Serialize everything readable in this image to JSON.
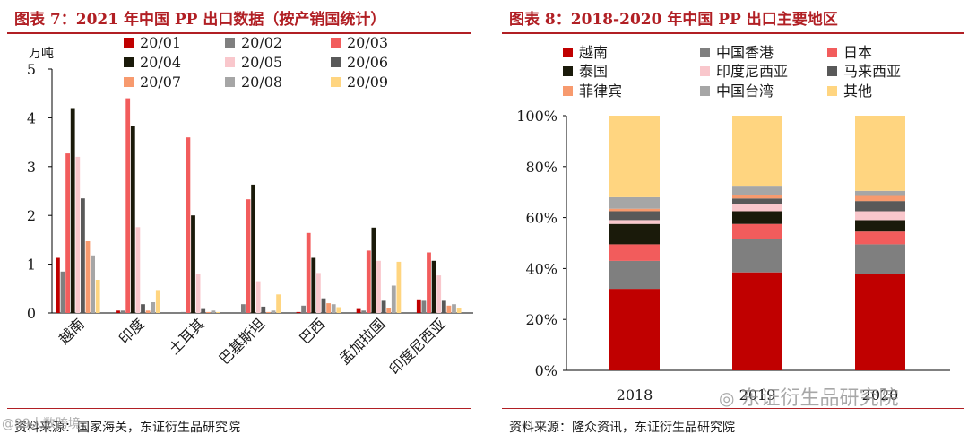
{
  "left": {
    "title": "图表 7：2021 年中国 PP 出口数据（按产销国统计）",
    "source": "资料来源：国家海关，东证衍生品研究院"
  },
  "right": {
    "title": "图表 8：2018-2020 年中国 PP 出口主要地区",
    "source": "资料来源：隆众资讯，东证衍生品研究院"
  },
  "watermark": {
    "brand": "东证衍生品研究院",
    "corner": "@99大数跨境"
  },
  "chart_data": [
    {
      "type": "bar",
      "unit_label": "万吨",
      "ylim": [
        0,
        5
      ],
      "yticks": [
        "0",
        "1",
        "2",
        "3",
        "4",
        "5"
      ],
      "categories": [
        "越南",
        "印度",
        "土耳其",
        "巴基斯坦",
        "巴西",
        "孟加拉国",
        "印度尼西亚"
      ],
      "series": [
        {
          "name": "20/01",
          "color": "#c00000",
          "values": [
            1.13,
            0.05,
            0.0,
            0.0,
            0.02,
            0.08,
            0.28
          ]
        },
        {
          "name": "20/02",
          "color": "#7f7f7f",
          "values": [
            0.85,
            0.05,
            0.02,
            0.18,
            0.15,
            0.05,
            0.25
          ]
        },
        {
          "name": "20/03",
          "color": "#f25c5c",
          "values": [
            3.27,
            4.4,
            3.6,
            2.33,
            1.64,
            1.28,
            1.24
          ]
        },
        {
          "name": "20/04",
          "color": "#1a1a0a",
          "values": [
            4.2,
            3.83,
            2.0,
            2.63,
            1.13,
            1.75,
            1.07
          ]
        },
        {
          "name": "20/05",
          "color": "#f9c7cc",
          "values": [
            3.2,
            1.76,
            0.79,
            0.65,
            0.82,
            1.07,
            0.77
          ]
        },
        {
          "name": "20/06",
          "color": "#595959",
          "values": [
            2.35,
            0.18,
            0.08,
            0.13,
            0.3,
            0.25,
            0.25
          ]
        },
        {
          "name": "20/07",
          "color": "#f79a6e",
          "values": [
            1.47,
            0.05,
            0.02,
            0.02,
            0.2,
            0.1,
            0.15
          ]
        },
        {
          "name": "20/08",
          "color": "#a6a6a6",
          "values": [
            1.18,
            0.22,
            0.05,
            0.05,
            0.18,
            0.56,
            0.18
          ]
        },
        {
          "name": "20/09",
          "color": "#ffd580",
          "values": [
            0.68,
            0.47,
            0.02,
            0.38,
            0.12,
            1.05,
            0.1
          ]
        }
      ]
    },
    {
      "type": "bar",
      "stacked": true,
      "percent": true,
      "ylim": [
        0,
        100
      ],
      "yticks": [
        "0%",
        "20%",
        "40%",
        "60%",
        "80%",
        "100%"
      ],
      "categories": [
        "2018",
        "2019",
        "2020"
      ],
      "series": [
        {
          "name": "越南",
          "color": "#c00000",
          "values": [
            32,
            38.5,
            38
          ]
        },
        {
          "name": "中国香港",
          "color": "#7f7f7f",
          "values": [
            11,
            13,
            11.5
          ]
        },
        {
          "name": "日本",
          "color": "#f25c5c",
          "values": [
            6.5,
            6,
            5
          ]
        },
        {
          "name": "泰国",
          "color": "#1a1a0a",
          "values": [
            8,
            5,
            4.5
          ]
        },
        {
          "name": "印度尼西亚",
          "color": "#f9c7cc",
          "values": [
            1.5,
            3,
            3.5
          ]
        },
        {
          "name": "马来西亚",
          "color": "#595959",
          "values": [
            3.5,
            2,
            4
          ]
        },
        {
          "name": "菲律宾",
          "color": "#f79a6e",
          "values": [
            1,
            1.5,
            2
          ]
        },
        {
          "name": "中国台湾",
          "color": "#a6a6a6",
          "values": [
            4.5,
            3.5,
            2
          ]
        },
        {
          "name": "其他",
          "color": "#ffd580",
          "values": [
            32,
            27.5,
            29.5
          ]
        }
      ]
    }
  ]
}
